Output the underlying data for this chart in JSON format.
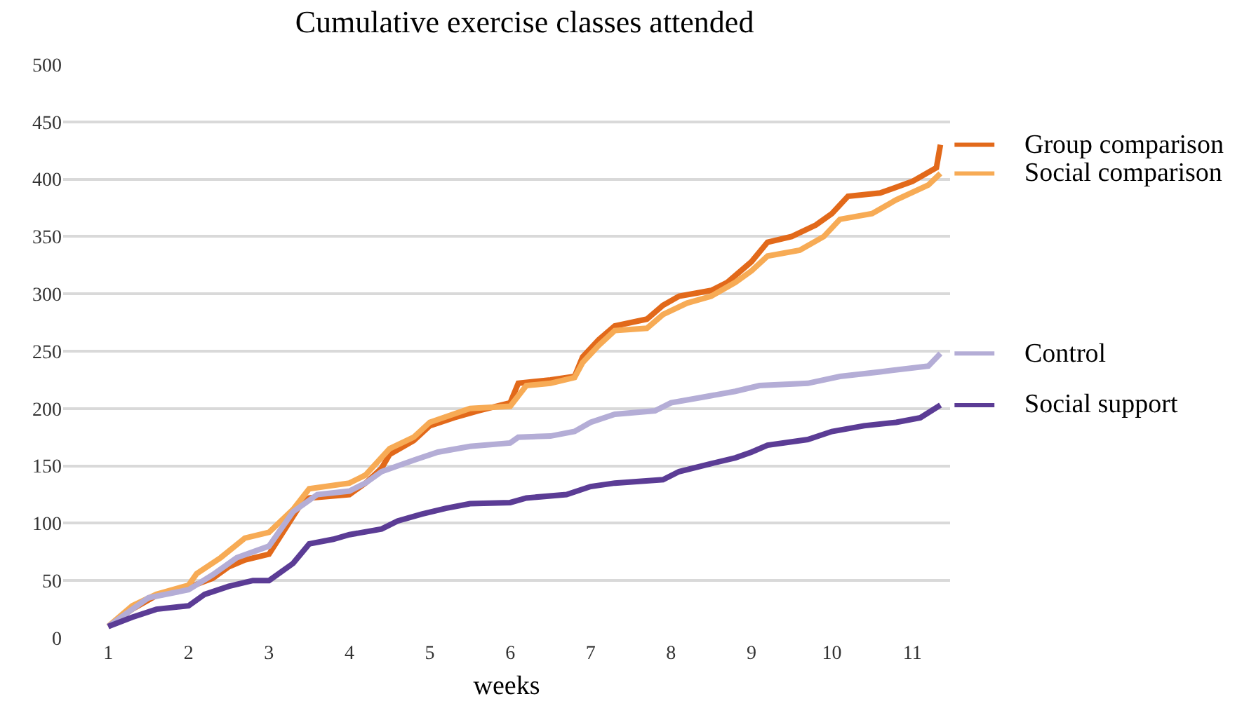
{
  "chart_data": {
    "type": "line",
    "title": "Cumulative exercise classes attended",
    "xlabel": "weeks",
    "xlim": [
      0.44,
      11.47
    ],
    "xticks": [
      1,
      2,
      3,
      4,
      5,
      6,
      7,
      8,
      9,
      10,
      11
    ],
    "ylim": [
      0,
      500
    ],
    "yticks": [
      0,
      50,
      100,
      150,
      200,
      250,
      300,
      350,
      400,
      450,
      500
    ],
    "grid": "y",
    "legend": "right",
    "marker": "none",
    "line_style": "solid",
    "series": [
      {
        "name": "Group comparison",
        "color": "#e2691a",
        "x": [
          1,
          1.3,
          1.6,
          2,
          2.3,
          2.5,
          2.7,
          3,
          3.2,
          3.4,
          3.5,
          4,
          4.2,
          4.4,
          4.5,
          4.8,
          5,
          5.3,
          5.6,
          6,
          6.1,
          6.5,
          6.8,
          6.9,
          7.1,
          7.3,
          7.7,
          7.9,
          8.1,
          8.5,
          8.7,
          9,
          9.2,
          9.5,
          9.8,
          10,
          10.2,
          10.6,
          11,
          11.3,
          11.35
        ],
        "values": [
          10,
          25,
          37,
          44,
          52,
          62,
          68,
          73,
          95,
          117,
          122,
          125,
          135,
          148,
          160,
          172,
          185,
          192,
          198,
          205,
          222,
          225,
          228,
          245,
          260,
          272,
          278,
          290,
          298,
          303,
          310,
          328,
          345,
          350,
          360,
          370,
          385,
          388,
          398,
          410,
          430
        ]
      },
      {
        "name": "Social comparison",
        "color": "#f7ab55",
        "x": [
          1,
          1.3,
          1.6,
          2,
          2.1,
          2.4,
          2.7,
          3,
          3.3,
          3.5,
          4,
          4.2,
          4.5,
          4.8,
          5,
          5.5,
          6,
          6.2,
          6.5,
          6.8,
          6.9,
          7.1,
          7.3,
          7.7,
          7.9,
          8.2,
          8.5,
          8.8,
          9,
          9.2,
          9.6,
          9.9,
          10.1,
          10.5,
          10.8,
          11.2,
          11.35
        ],
        "values": [
          10,
          28,
          38,
          46,
          56,
          70,
          87,
          92,
          112,
          130,
          135,
          142,
          165,
          175,
          188,
          200,
          202,
          220,
          222,
          227,
          240,
          255,
          268,
          270,
          282,
          292,
          298,
          310,
          320,
          333,
          338,
          350,
          365,
          370,
          382,
          395,
          405
        ]
      },
      {
        "name": "Control",
        "color": "#b4add6",
        "x": [
          1,
          1.5,
          2,
          2.3,
          2.6,
          3,
          3.3,
          3.6,
          4,
          4.2,
          4.4,
          4.8,
          5.1,
          5.5,
          6,
          6.1,
          6.5,
          6.8,
          7,
          7.3,
          7.8,
          8,
          8.4,
          8.8,
          9.1,
          9.7,
          10.1,
          10.6,
          11.2,
          11.35
        ],
        "values": [
          10,
          35,
          42,
          55,
          70,
          80,
          110,
          125,
          128,
          135,
          145,
          155,
          162,
          167,
          170,
          175,
          176,
          180,
          188,
          195,
          198,
          205,
          210,
          215,
          220,
          222,
          228,
          232,
          237,
          248
        ]
      },
      {
        "name": "Social support",
        "color": "#5b3c95",
        "x": [
          1,
          1.3,
          1.6,
          2,
          2.2,
          2.5,
          2.8,
          3,
          3.3,
          3.5,
          3.8,
          4,
          4.4,
          4.6,
          4.9,
          5.2,
          5.5,
          6,
          6.2,
          6.7,
          7,
          7.3,
          7.9,
          8.1,
          8.5,
          8.8,
          9,
          9.2,
          9.7,
          10,
          10.4,
          10.8,
          11.1,
          11.35
        ],
        "values": [
          10,
          18,
          25,
          28,
          38,
          45,
          50,
          50,
          65,
          82,
          86,
          90,
          95,
          102,
          108,
          113,
          117,
          118,
          122,
          125,
          132,
          135,
          138,
          145,
          152,
          157,
          162,
          168,
          173,
          180,
          185,
          188,
          192,
          203
        ]
      }
    ]
  }
}
